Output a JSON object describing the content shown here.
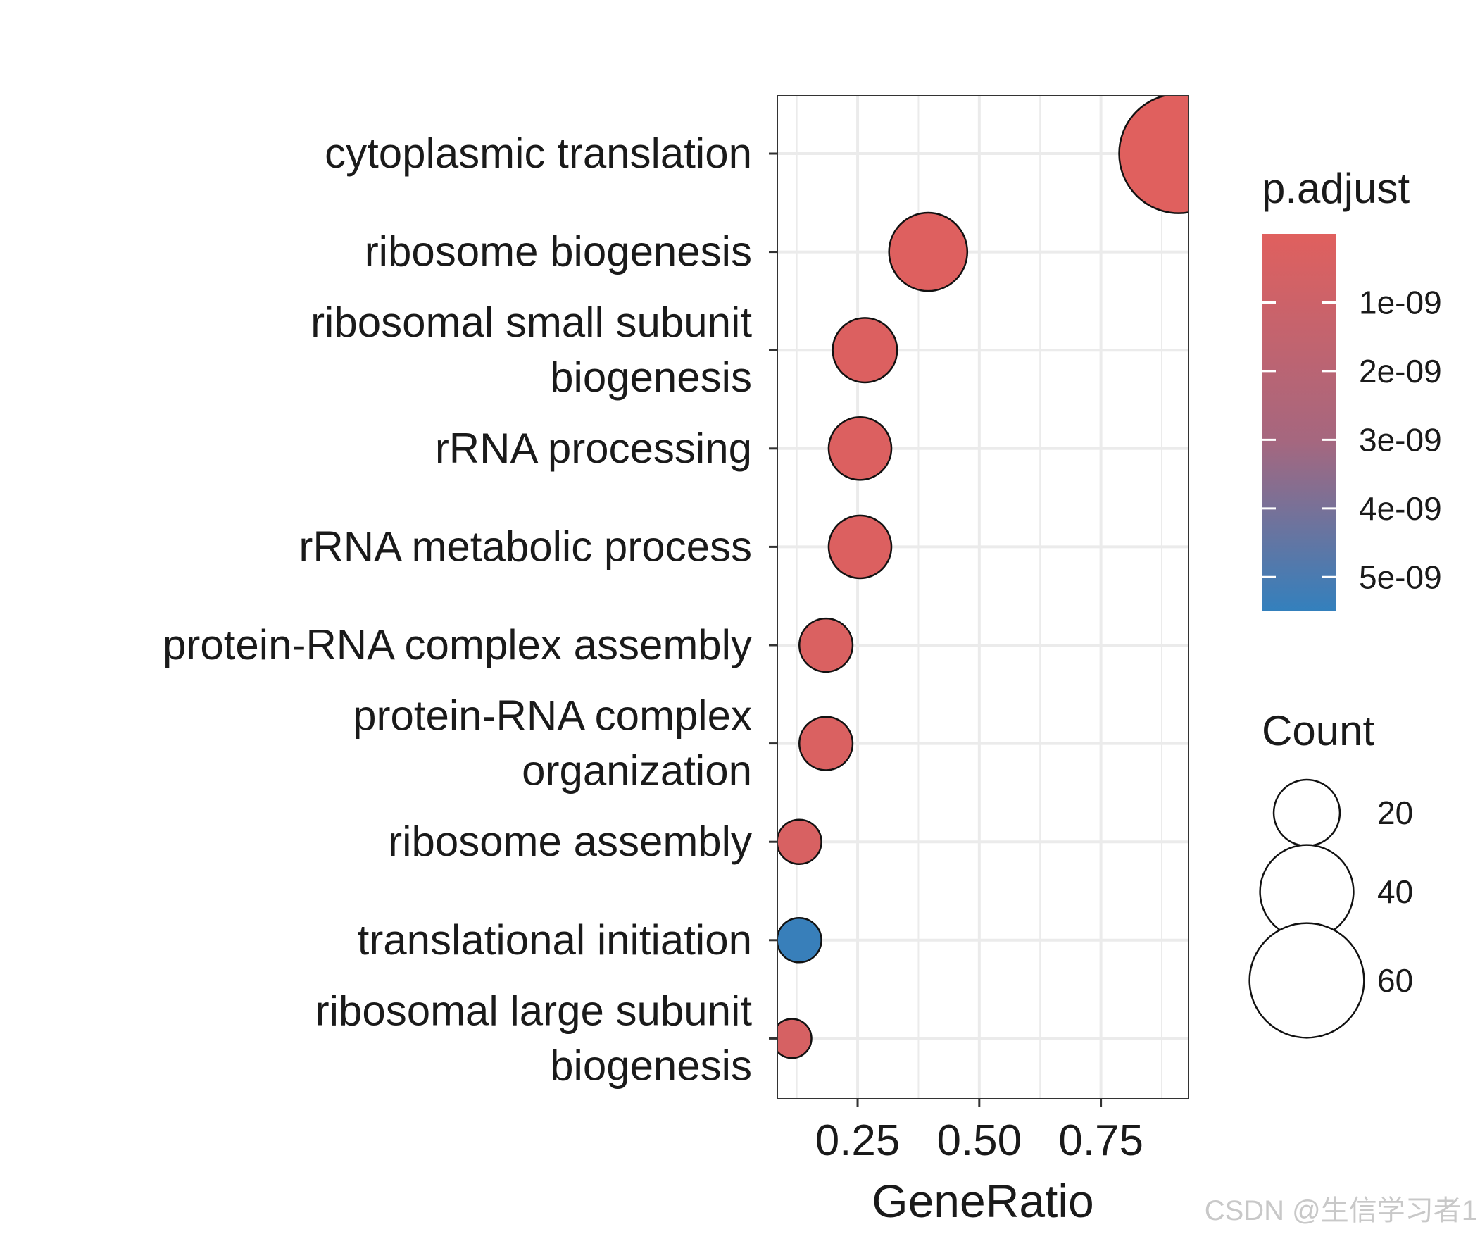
{
  "chart_data": {
    "type": "scatter",
    "subtype": "dot-plot",
    "xlabel": "GeneRatio",
    "ylabel": "",
    "xlim": [
      0.085,
      0.93
    ],
    "xticks": [
      0.25,
      0.5,
      0.75
    ],
    "xtick_labels": [
      "0.25",
      "0.50",
      "0.75"
    ],
    "grid": true,
    "categories": [
      {
        "label_lines": [
          "cytoplasmic translation"
        ],
        "gene_ratio": 0.91,
        "count": 65,
        "p_adjust": 1e-11
      },
      {
        "label_lines": [
          "ribosome biogenesis"
        ],
        "gene_ratio": 0.395,
        "count": 28,
        "p_adjust": 1e-10
      },
      {
        "label_lines": [
          "ribosomal small subunit",
          "biogenesis"
        ],
        "gene_ratio": 0.265,
        "count": 19,
        "p_adjust": 2e-10
      },
      {
        "label_lines": [
          "rRNA processing"
        ],
        "gene_ratio": 0.255,
        "count": 18,
        "p_adjust": 2e-10
      },
      {
        "label_lines": [
          "rRNA metabolic process"
        ],
        "gene_ratio": 0.255,
        "count": 18,
        "p_adjust": 2e-10
      },
      {
        "label_lines": [
          "protein-RNA complex assembly"
        ],
        "gene_ratio": 0.185,
        "count": 13,
        "p_adjust": 3e-10
      },
      {
        "label_lines": [
          "protein-RNA complex",
          "organization"
        ],
        "gene_ratio": 0.185,
        "count": 13,
        "p_adjust": 3e-10
      },
      {
        "label_lines": [
          "ribosome assembly"
        ],
        "gene_ratio": 0.13,
        "count": 9,
        "p_adjust": 4e-10
      },
      {
        "label_lines": [
          "translational initiation"
        ],
        "gene_ratio": 0.13,
        "count": 9,
        "p_adjust": 5.4e-09
      },
      {
        "label_lines": [
          "ribosomal large subunit",
          "biogenesis"
        ],
        "gene_ratio": 0.115,
        "count": 7,
        "p_adjust": 5e-10
      }
    ],
    "color_legend": {
      "title": "p.adjust",
      "ticks": [
        1e-09,
        2e-09,
        3e-09,
        4e-09,
        5e-09
      ],
      "tick_labels": [
        "1e-09",
        "2e-09",
        "3e-09",
        "4e-09",
        "5e-09"
      ],
      "range": [
        0,
        5.5e-09
      ],
      "low_color": "#e0605e",
      "high_color": "#3380bd"
    },
    "size_legend": {
      "title": "Count",
      "values": [
        20,
        40,
        60
      ],
      "labels": [
        "20",
        "40",
        "60"
      ]
    }
  },
  "colors": {
    "grid": "#ebebeb",
    "panel_border": "#333333",
    "point_stroke": "#111111"
  },
  "watermark": "CSDN @生信学习者1"
}
